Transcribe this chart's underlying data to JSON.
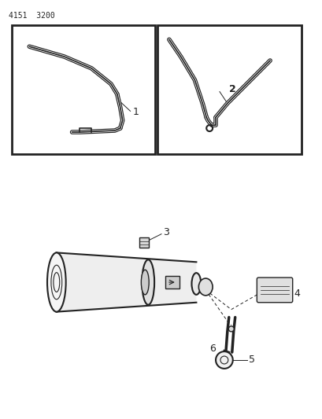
{
  "bg_color": "#ffffff",
  "header_text": "4151  3200",
  "header_fontsize": 7,
  "line_color": "#222222",
  "line_width": 1.2,
  "thin_lw": 0.7,
  "thick_lw": 1.8
}
